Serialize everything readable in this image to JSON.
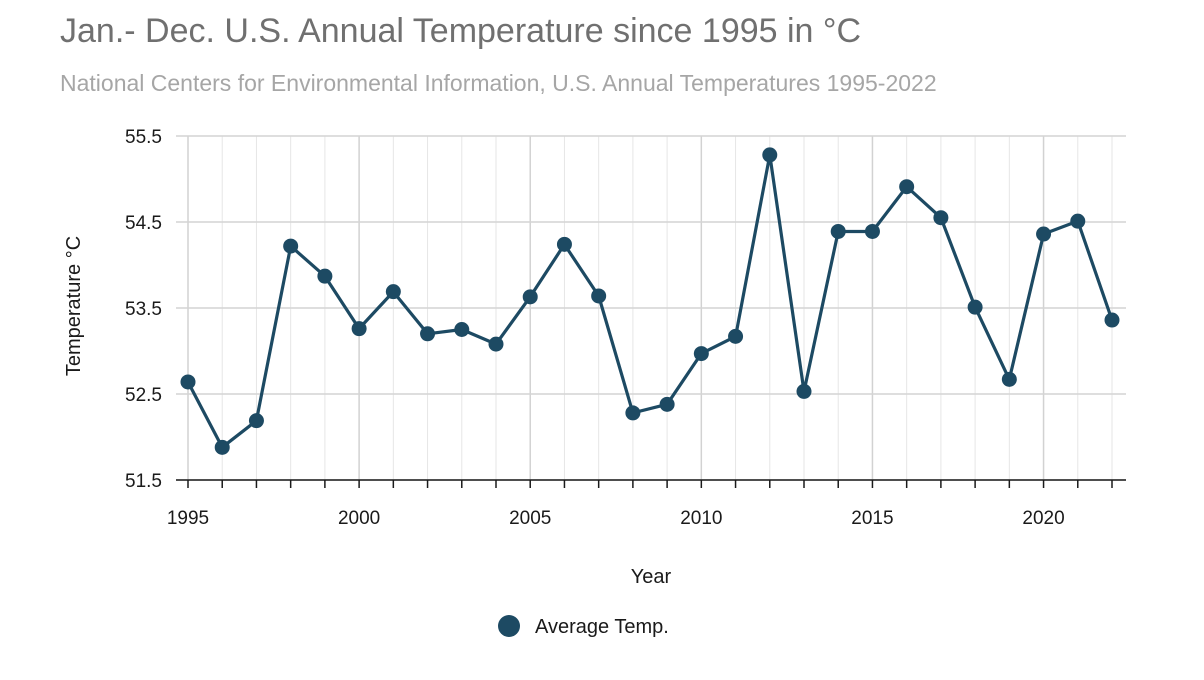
{
  "chart_data": {
    "type": "line",
    "title": "Jan.- Dec. U.S. Annual Temperature since 1995 in °C",
    "subtitle": "National Centers for Environmental Information, U.S. Annual Temperatures 1995-2022",
    "xlabel": "Year",
    "ylabel": "Temperature °C",
    "xlim": [
      1995,
      2022
    ],
    "ylim": [
      51.5,
      55.5
    ],
    "x_ticks": [
      1995,
      2000,
      2005,
      2010,
      2015,
      2020
    ],
    "y_ticks": [
      51.5,
      52.5,
      53.5,
      54.5,
      55.5
    ],
    "x_tick_labels": [
      "1995",
      "2000",
      "2005",
      "2010",
      "2015",
      "2020"
    ],
    "y_tick_labels": [
      "51.5",
      "52.5",
      "53.5",
      "54.5",
      "55.5"
    ],
    "grid": true,
    "legend_position": "bottom-center",
    "x": [
      1995,
      1996,
      1997,
      1998,
      1999,
      2000,
      2001,
      2002,
      2003,
      2004,
      2005,
      2006,
      2007,
      2008,
      2009,
      2010,
      2011,
      2012,
      2013,
      2014,
      2015,
      2016,
      2017,
      2018,
      2019,
      2020,
      2021,
      2022
    ],
    "series": [
      {
        "name": "Average Temp.",
        "color": "#1d4a63",
        "values": [
          52.64,
          51.88,
          52.19,
          54.22,
          53.87,
          53.26,
          53.69,
          53.2,
          53.25,
          53.08,
          53.63,
          54.24,
          53.64,
          52.28,
          52.38,
          52.97,
          53.17,
          55.28,
          52.53,
          54.39,
          54.39,
          54.91,
          54.55,
          53.51,
          52.67,
          54.36,
          54.51,
          53.36
        ]
      }
    ]
  }
}
